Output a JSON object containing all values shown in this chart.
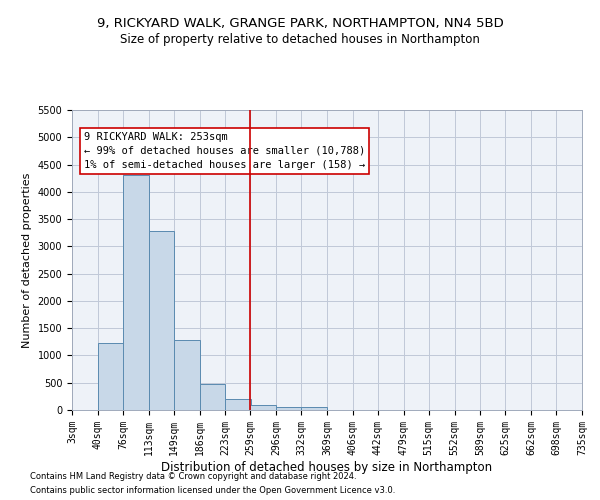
{
  "title1": "9, RICKYARD WALK, GRANGE PARK, NORTHAMPTON, NN4 5BD",
  "title2": "Size of property relative to detached houses in Northampton",
  "xlabel": "Distribution of detached houses by size in Northampton",
  "ylabel": "Number of detached properties",
  "footnote1": "Contains HM Land Registry data © Crown copyright and database right 2024.",
  "footnote2": "Contains public sector information licensed under the Open Government Licence v3.0.",
  "property_label": "9 RICKYARD WALK: 253sqm",
  "annotation_line1": "← 99% of detached houses are smaller (10,788)",
  "annotation_line2": "1% of semi-detached houses are larger (158) →",
  "bar_left_edges": [
    3,
    40,
    76,
    113,
    149,
    186,
    223,
    259,
    296,
    332,
    369,
    406,
    442,
    479,
    515,
    552,
    589,
    625,
    662,
    698
  ],
  "bar_heights": [
    0,
    1230,
    4300,
    3280,
    1290,
    480,
    205,
    95,
    60,
    50,
    0,
    0,
    0,
    0,
    0,
    0,
    0,
    0,
    0,
    0
  ],
  "bin_width": 37,
  "bar_color": "#c8d8e8",
  "bar_edge_color": "#5a8ab0",
  "vline_x": 259,
  "vline_color": "#cc0000",
  "box_color": "#cc0000",
  "ylim": [
    0,
    5500
  ],
  "yticks": [
    0,
    500,
    1000,
    1500,
    2000,
    2500,
    3000,
    3500,
    4000,
    4500,
    5000,
    5500
  ],
  "xtick_labels": [
    "3sqm",
    "40sqm",
    "76sqm",
    "113sqm",
    "149sqm",
    "186sqm",
    "223sqm",
    "259sqm",
    "296sqm",
    "332sqm",
    "369sqm",
    "406sqm",
    "442sqm",
    "479sqm",
    "515sqm",
    "552sqm",
    "589sqm",
    "625sqm",
    "662sqm",
    "698sqm",
    "735sqm"
  ],
  "xtick_positions": [
    3,
    40,
    76,
    113,
    149,
    186,
    223,
    259,
    296,
    332,
    369,
    406,
    442,
    479,
    515,
    552,
    589,
    625,
    662,
    698,
    735
  ],
  "grid_color": "#c0c8d8",
  "bg_color": "#eef2f8",
  "title1_fontsize": 9.5,
  "title2_fontsize": 8.5,
  "xlabel_fontsize": 8.5,
  "ylabel_fontsize": 8,
  "tick_fontsize": 7,
  "annotation_fontsize": 7.5
}
